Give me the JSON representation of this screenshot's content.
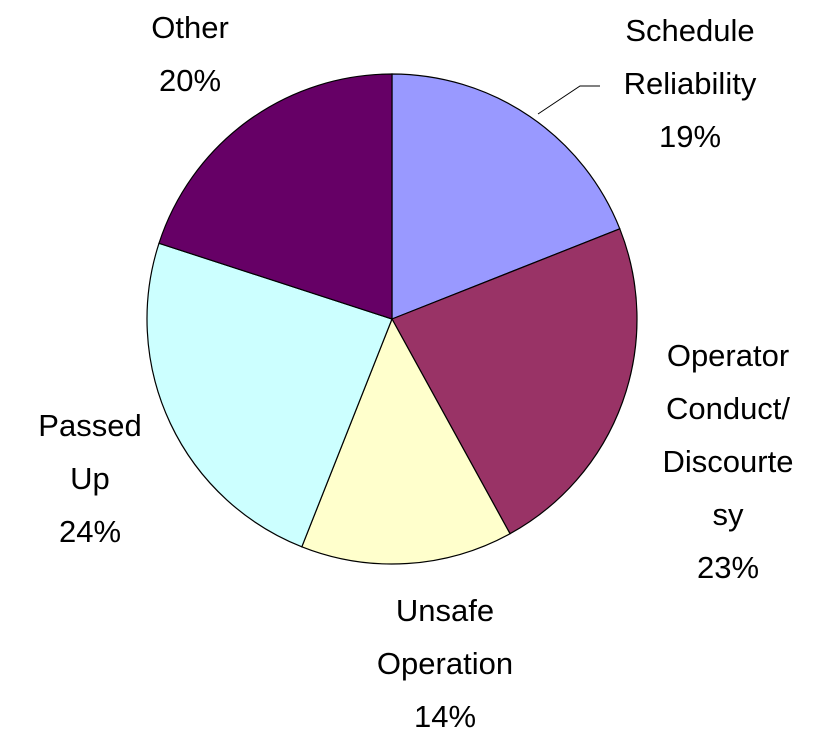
{
  "chart_data": {
    "type": "pie",
    "categories": [
      "Schedule Reliability",
      "Operator Conduct/Discourtesy",
      "Unsafe Operation",
      "Passed Up",
      "Other"
    ],
    "values": [
      19,
      23,
      14,
      24,
      20
    ],
    "value_labels": [
      "19%",
      "23%",
      "14%",
      "24%",
      "20%"
    ],
    "colors": [
      "#9999ff",
      "#993366",
      "#ffffcc",
      "#ccffff",
      "#660066"
    ]
  }
}
